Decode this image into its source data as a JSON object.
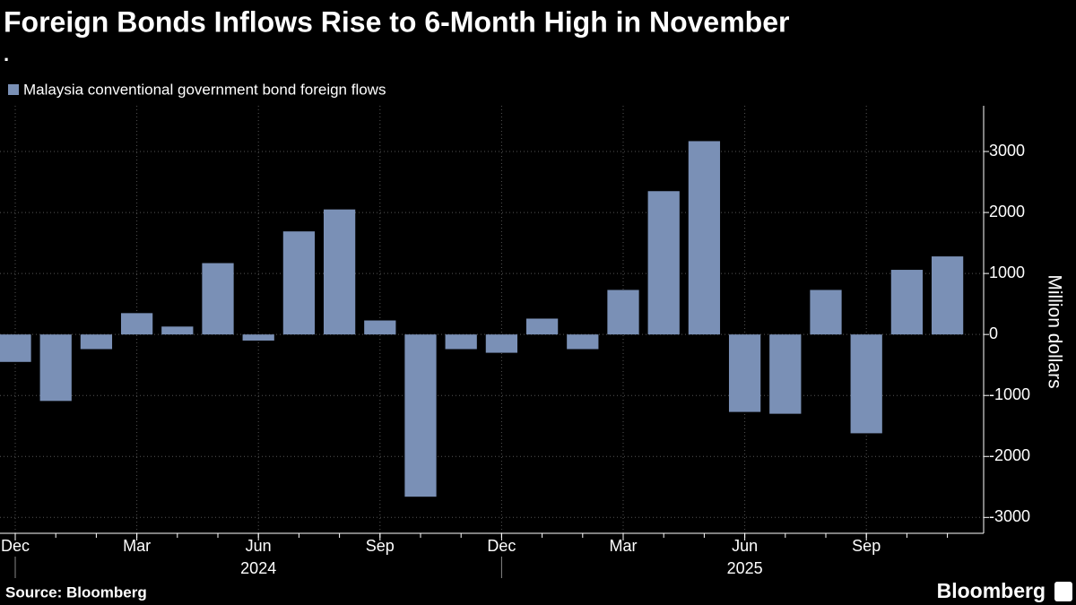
{
  "chart_data": {
    "type": "bar",
    "title": "Foreign Bonds Inflows Rise to 6-Month High in November",
    "subtitle": ".",
    "series": [
      {
        "name": "Malaysia conventional government bond foreign flows",
        "color": "#7a90b6",
        "values": [
          -450,
          -1090,
          -240,
          350,
          130,
          1170,
          -100,
          1690,
          2050,
          230,
          -2660,
          -240,
          -300,
          260,
          -240,
          730,
          2350,
          3170,
          -1270,
          -1300,
          730,
          -1620,
          1060,
          1280
        ]
      }
    ],
    "categories": [
      "Dec",
      null,
      null,
      "Mar",
      null,
      null,
      "Jun",
      null,
      null,
      "Sep",
      null,
      null,
      "Dec",
      null,
      null,
      "Mar",
      null,
      null,
      "Jun",
      null,
      null,
      "Sep",
      null,
      null
    ],
    "year_labels": [
      "2024",
      "2025"
    ],
    "ylabel": "Million dollars",
    "ylim": [
      -3260,
      3750
    ],
    "yticks": [
      -3000,
      -2000,
      -1000,
      0,
      1000,
      2000,
      3000
    ],
    "grid": true,
    "source": "Source: Bloomberg",
    "brand": "Bloomberg"
  }
}
